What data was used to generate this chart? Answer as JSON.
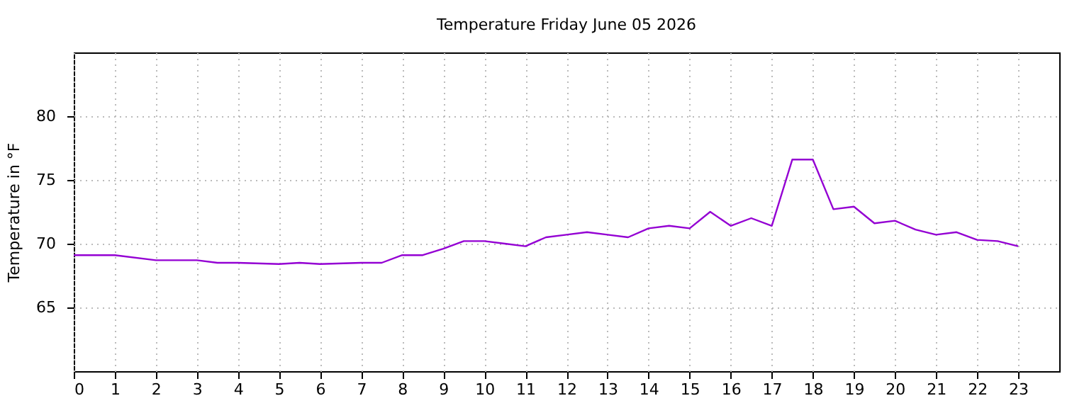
{
  "chart_data": {
    "type": "line",
    "title": "Temperature Friday June 05 2026",
    "ylabel": "Temperature in °F",
    "x": [
      0,
      1,
      2,
      3,
      3.5,
      4,
      5,
      5.5,
      6,
      7,
      7.5,
      8,
      8.5,
      9,
      9.5,
      10,
      10.5,
      11,
      11.5,
      12,
      12.5,
      13,
      13.5,
      14,
      14.5,
      15,
      15.5,
      16,
      16.5,
      17,
      17.5,
      18,
      18.5,
      19,
      19.5,
      20,
      20.5,
      21,
      21.5,
      22,
      22.5,
      23
    ],
    "series": [
      {
        "color": "#9400d3",
        "values": [
          69.1,
          69.1,
          68.7,
          68.7,
          68.5,
          68.5,
          68.4,
          68.5,
          68.4,
          68.5,
          68.5,
          69.1,
          69.1,
          69.6,
          70.2,
          70.2,
          70.0,
          69.8,
          70.5,
          70.7,
          70.9,
          70.7,
          70.5,
          71.2,
          71.4,
          71.2,
          72.5,
          71.4,
          72.0,
          71.4,
          76.6,
          76.6,
          72.7,
          72.9,
          71.6,
          71.8,
          71.1,
          70.7,
          70.9,
          70.3,
          70.2,
          69.8
        ]
      }
    ],
    "xlim": [
      0,
      24
    ],
    "xticks": [
      0,
      1,
      2,
      3,
      4,
      5,
      6,
      7,
      8,
      9,
      10,
      11,
      12,
      13,
      14,
      15,
      16,
      17,
      18,
      19,
      20,
      21,
      22,
      23
    ],
    "ylim": [
      60,
      85
    ],
    "yticks": [
      65,
      70,
      75,
      80
    ],
    "grid": true,
    "marker": "none",
    "line_style": "solid"
  }
}
